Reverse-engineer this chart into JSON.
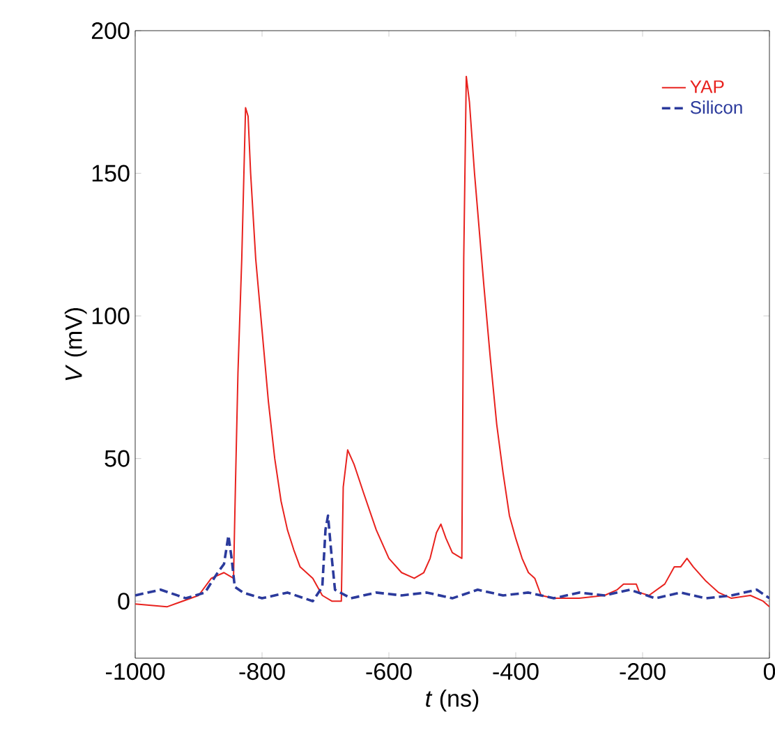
{
  "chart_data": {
    "type": "line",
    "xlabel": "*t* (ns)",
    "ylabel": "*V* (mV)",
    "xlim": [
      -1000,
      0
    ],
    "ylim": [
      -20,
      200
    ],
    "xticks": [
      -1000,
      -800,
      -600,
      -400,
      -200,
      0
    ],
    "yticks": [
      0,
      50,
      100,
      150,
      200
    ],
    "legend": "top right",
    "grid": false,
    "marker": "none",
    "series": [
      {
        "name": "YAP",
        "color": "#e8221e",
        "line_style": "solid",
        "x": [
          -1000,
          -950,
          -900,
          -880,
          -860,
          -845,
          -842,
          -838,
          -832,
          -826,
          -822,
          -818,
          -810,
          -800,
          -790,
          -780,
          -770,
          -760,
          -750,
          -740,
          -720,
          -705,
          -690,
          -675,
          -672,
          -665,
          -655,
          -640,
          -620,
          -600,
          -580,
          -560,
          -545,
          -535,
          -525,
          -518,
          -510,
          -500,
          -485,
          -482,
          -478,
          -473,
          -465,
          -450,
          -440,
          -430,
          -420,
          -410,
          -400,
          -390,
          -380,
          -370,
          -360,
          -340,
          -300,
          -260,
          -240,
          -230,
          -210,
          -205,
          -190,
          -165,
          -150,
          -140,
          -130,
          -120,
          -100,
          -80,
          -60,
          -30,
          -10,
          0
        ],
        "values": [
          -1,
          -2,
          2,
          8,
          10,
          8,
          40,
          80,
          120,
          173,
          170,
          150,
          120,
          95,
          70,
          50,
          35,
          25,
          18,
          12,
          8,
          2,
          0,
          0,
          40,
          53,
          48,
          38,
          25,
          15,
          10,
          8,
          10,
          15,
          24,
          27,
          22,
          17,
          15,
          120,
          184,
          175,
          150,
          110,
          85,
          62,
          45,
          30,
          22,
          15,
          10,
          8,
          2,
          1,
          1,
          2,
          4,
          6,
          6,
          3,
          2,
          6,
          12,
          12,
          15,
          12,
          7,
          3,
          1,
          2,
          0,
          -2
        ]
      },
      {
        "name": "Silicon",
        "color": "#2b3a9c",
        "line_style": "dashed",
        "x": [
          -1000,
          -960,
          -920,
          -890,
          -870,
          -860,
          -853,
          -848,
          -843,
          -830,
          -800,
          -760,
          -720,
          -705,
          -700,
          -696,
          -690,
          -685,
          -660,
          -620,
          -580,
          -540,
          -500,
          -460,
          -420,
          -380,
          -340,
          -300,
          -260,
          -220,
          -180,
          -140,
          -100,
          -60,
          -20,
          0
        ],
        "values": [
          2,
          4,
          1,
          3,
          10,
          13,
          23,
          15,
          5,
          3,
          1,
          3,
          0,
          5,
          25,
          30,
          15,
          4,
          1,
          3,
          2,
          3,
          1,
          4,
          2,
          3,
          1,
          3,
          2,
          4,
          1,
          3,
          1,
          2,
          4,
          1
        ]
      }
    ]
  }
}
